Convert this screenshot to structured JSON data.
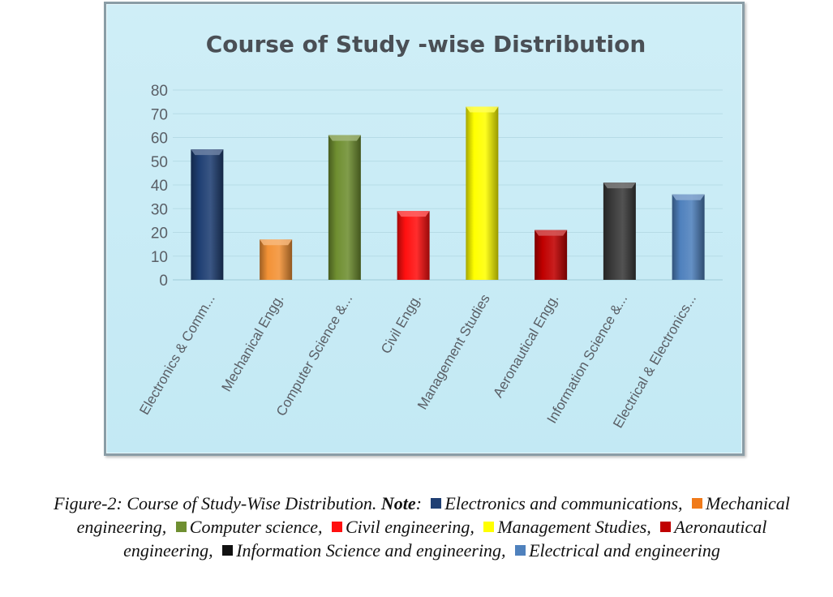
{
  "chart_data": {
    "type": "bar",
    "title": "Course of Study -wise Distribution",
    "categories": [
      "Electronics & Comm...",
      "Mechanical Engg.",
      "Computer Science &...",
      "Civil Engg.",
      "Management Studies",
      "Aeronautical Engg.",
      "Information Science &...",
      "Electrical & Electronics..."
    ],
    "values": [
      55,
      17,
      61,
      29,
      73,
      21,
      41,
      36
    ],
    "colors": [
      "#1f3f73",
      "#f39236",
      "#6f8f31",
      "#ff1010",
      "#ffff00",
      "#c00000",
      "#3a3a3a",
      "#4f81bd"
    ],
    "yticks": [
      0,
      10,
      20,
      30,
      40,
      50,
      60,
      70,
      80
    ],
    "ylim": [
      0,
      80
    ],
    "xlabel": "",
    "ylabel": ""
  },
  "caption": {
    "figure": "Figure-2: Course of Study-Wise Distribution.",
    "note_label": "Note",
    "legend": [
      {
        "color": "#1f3f73",
        "label": "Electronics and communications,"
      },
      {
        "color": "#f07a1a",
        "label": "Mechanical engineering,"
      },
      {
        "color": "#6f8f31",
        "label": "Computer science,"
      },
      {
        "color": "#ff1010",
        "label": "Civil engineering,"
      },
      {
        "color": "#ffff00",
        "label": "Management Studies,"
      },
      {
        "color": "#c00000",
        "label": "Aeronautical engineering,"
      },
      {
        "color": "#111111",
        "label": "Information Science and engineering,"
      },
      {
        "color": "#4f81bd",
        "label": "Electrical and engineering"
      }
    ]
  }
}
